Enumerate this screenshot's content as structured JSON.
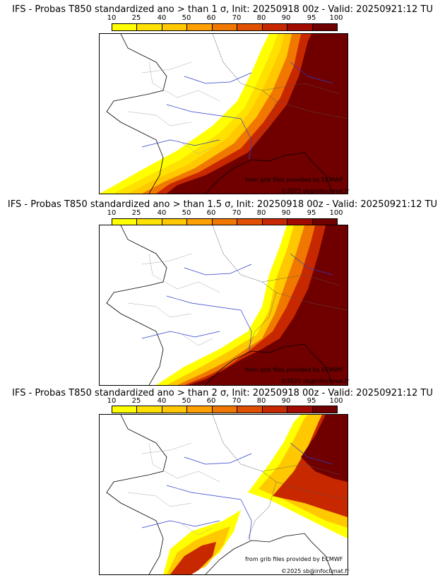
{
  "colorbar": {
    "ticks": [
      "10",
      "25",
      "40",
      "50",
      "60",
      "70",
      "80",
      "90",
      "95",
      "100"
    ],
    "colors": [
      "#ffff00",
      "#ffe100",
      "#ffc800",
      "#ffa000",
      "#f07800",
      "#e05000",
      "#c82800",
      "#a00a00",
      "#700000"
    ]
  },
  "panels": [
    {
      "title": "IFS - Probas T850  standardized ano > than 1 σ, Init: 20250918 00z - Valid: 20250921:12 TU",
      "credit_source": "from grib files provided by ECMWF",
      "credit_copyright": "©2025 sb@infoclimat.fr"
    },
    {
      "title": "IFS - Probas T850  standardized ano > than 1.5 σ, Init: 20250918 00z - Valid: 20250921:12 TU",
      "credit_source": "from grib files provided by ECMWF",
      "credit_copyright": "©2025 sb@infoclimat.fr"
    },
    {
      "title": "IFS - Probas T850  standardized ano > than 2 σ, Init: 20250918 00z - Valid: 20250921:12 TU",
      "credit_source": "from grib files provided by ECMWF",
      "credit_copyright": "©2025 sb@infoclimat.fr"
    }
  ]
}
